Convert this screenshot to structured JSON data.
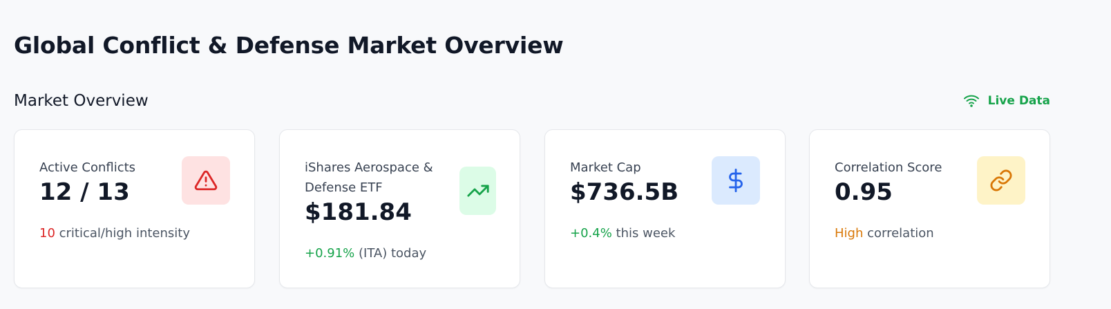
{
  "page": {
    "title": "Global Conflict & Defense Market Overview"
  },
  "section": {
    "title": "Market Overview",
    "live_label": "Live Data",
    "live_icon": "wifi-icon"
  },
  "cards": [
    {
      "label": "Active Conflicts",
      "value": "12 / 13",
      "footer_highlight": "10",
      "footer_text": " critical/high intensity",
      "highlight_color": "#dc2626",
      "icon": "alert-triangle-icon",
      "icon_color": "#dc2626",
      "icon_bg": "#fee2e2"
    },
    {
      "label": "iShares Aerospace & Defense ETF",
      "value": "$181.84",
      "footer_highlight": "+0.91%",
      "footer_text": " (ITA) today",
      "highlight_color": "#16a34a",
      "icon": "trending-up-icon",
      "icon_color": "#16a34a",
      "icon_bg": "#dcfce7"
    },
    {
      "label": "Market Cap",
      "value": "$736.5B",
      "footer_highlight": "+0.4%",
      "footer_text": " this week",
      "highlight_color": "#16a34a",
      "icon": "dollar-sign-icon",
      "icon_color": "#2563eb",
      "icon_bg": "#dbeafe"
    },
    {
      "label": "Correlation Score",
      "value": "0.95",
      "footer_highlight": "High",
      "footer_text": " correlation",
      "highlight_color": "#d97706",
      "icon": "link-icon",
      "icon_color": "#d97706",
      "icon_bg": "#fef3c7"
    }
  ]
}
